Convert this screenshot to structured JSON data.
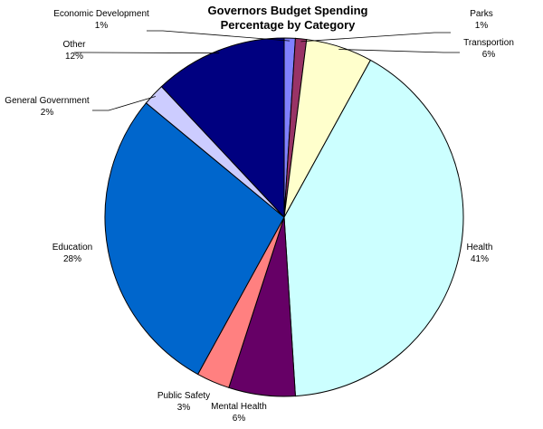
{
  "chart_data": {
    "type": "pie",
    "title_lines": [
      "Governors Budget Spending",
      "Percentage by Category"
    ],
    "slices": [
      {
        "name": "Economic Development",
        "pct_label": "1%",
        "value": 1,
        "color": "#8080ff"
      },
      {
        "name": "Parks",
        "pct_label": "1%",
        "value": 1,
        "color": "#993366"
      },
      {
        "name": "Transportion",
        "pct_label": "6%",
        "value": 6,
        "color": "#ffffcc"
      },
      {
        "name": "Health",
        "pct_label": "41%",
        "value": 41,
        "color": "#ccffff"
      },
      {
        "name": "Mental Health",
        "pct_label": "6%",
        "value": 6,
        "color": "#660066"
      },
      {
        "name": "Public Safety",
        "pct_label": "3%",
        "value": 3,
        "color": "#ff8080"
      },
      {
        "name": "Education",
        "pct_label": "28%",
        "value": 28,
        "color": "#0066cc"
      },
      {
        "name": "General Government",
        "pct_label": "2%",
        "value": 2,
        "color": "#ccccff"
      },
      {
        "name": "Other",
        "pct_label": "12%",
        "value": 12,
        "color": "#000080"
      }
    ]
  }
}
